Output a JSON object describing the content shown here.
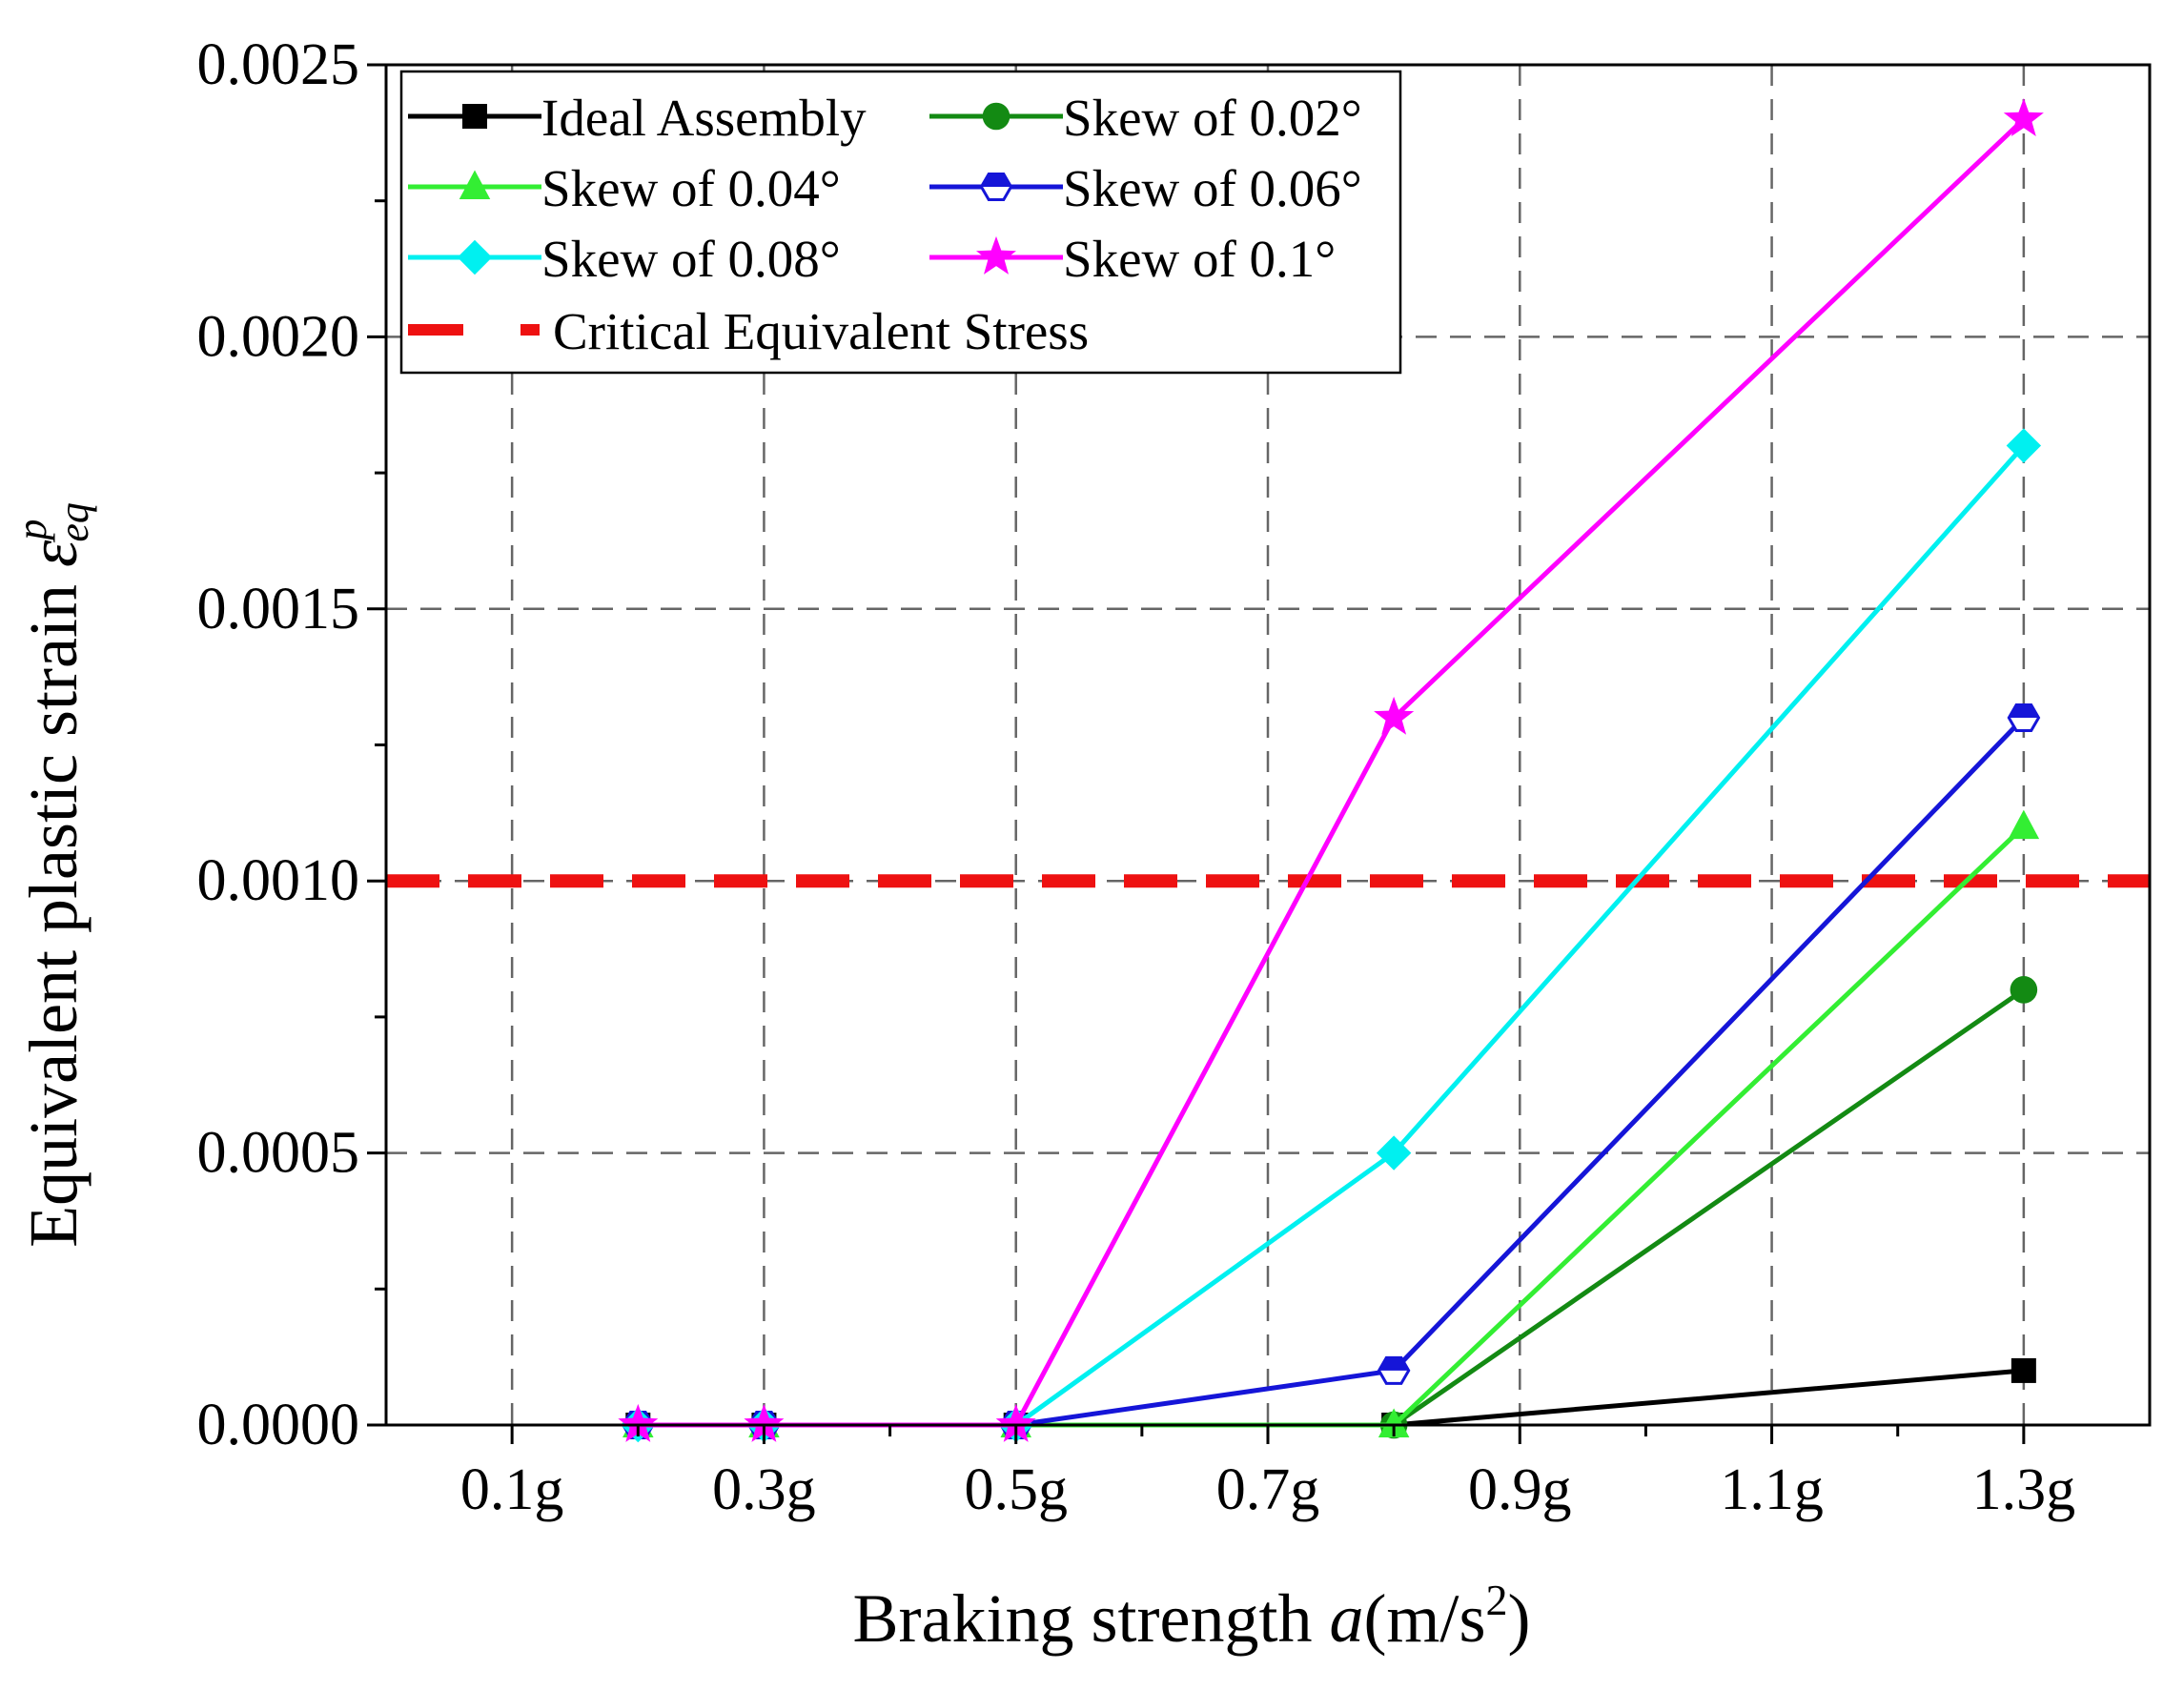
{
  "chart_data": {
    "type": "line",
    "xlabel": "Braking strength ",
    "xlabel_var": "a",
    "xlabel_unit": "(m/s",
    "xlabel_exp": "2",
    "xlabel_close": ")",
    "ylabel": "Equivalent plastic strain ",
    "ylabel_symbol": "ε",
    "ylabel_sub": "eq",
    "ylabel_sup": "p",
    "xlim": [
      0,
      1.4
    ],
    "ylim": [
      0,
      0.0025
    ],
    "xticks": [
      {
        "value": 0.1,
        "label": "0.1g"
      },
      {
        "value": 0.3,
        "label": "0.3g"
      },
      {
        "value": 0.5,
        "label": "0.5g"
      },
      {
        "value": 0.7,
        "label": "0.7g"
      },
      {
        "value": 0.9,
        "label": "0.9g"
      },
      {
        "value": 1.1,
        "label": "1.1g"
      },
      {
        "value": 1.3,
        "label": "1.3g"
      }
    ],
    "yticks": [
      {
        "value": 0.0,
        "label": "0.0000"
      },
      {
        "value": 0.0005,
        "label": "0.0005"
      },
      {
        "value": 0.001,
        "label": "0.0010"
      },
      {
        "value": 0.0015,
        "label": "0.0015"
      },
      {
        "value": 0.002,
        "label": "0.0020"
      },
      {
        "value": 0.0025,
        "label": "0.0025"
      }
    ],
    "grid": true,
    "legend_position": "top-left",
    "series": [
      {
        "name": "Ideal Assembly",
        "color": "#000000",
        "marker": "square",
        "x": [
          0.2,
          0.3,
          0.5,
          0.8,
          1.3
        ],
        "y": [
          0,
          0,
          0,
          0,
          0.0001
        ]
      },
      {
        "name": "Skew of 0.02°",
        "color": "#138A13",
        "marker": "circle",
        "x": [
          0.2,
          0.3,
          0.5,
          0.8,
          1.3
        ],
        "y": [
          0,
          0,
          0,
          0,
          0.0008
        ]
      },
      {
        "name": "Skew of 0.04°",
        "color": "#33EE33",
        "marker": "triangle",
        "x": [
          0.2,
          0.3,
          0.5,
          0.8,
          1.3
        ],
        "y": [
          0,
          0,
          0,
          0,
          0.0011
        ]
      },
      {
        "name": "Skew of 0.06°",
        "color": "#1515D8",
        "marker": "hexagon-half",
        "x": [
          0.2,
          0.3,
          0.5,
          0.8,
          1.3
        ],
        "y": [
          0,
          0,
          0,
          0.0001,
          0.0013
        ]
      },
      {
        "name": "Skew of 0.08°",
        "color": "#00F0F0",
        "marker": "diamond",
        "x": [
          0.2,
          0.3,
          0.5,
          0.8,
          1.3
        ],
        "y": [
          0,
          0,
          0,
          0.0005,
          0.0018
        ]
      },
      {
        "name": "Skew of 0.1°",
        "color": "#FF00FF",
        "marker": "star",
        "x": [
          0.2,
          0.3,
          0.5,
          0.8,
          1.3
        ],
        "y": [
          0,
          0,
          0,
          0.0013,
          0.0024
        ]
      }
    ],
    "reference_line": {
      "name": "Critical Equivalent Stress",
      "y": 0.001,
      "color": "#EE1111"
    }
  }
}
